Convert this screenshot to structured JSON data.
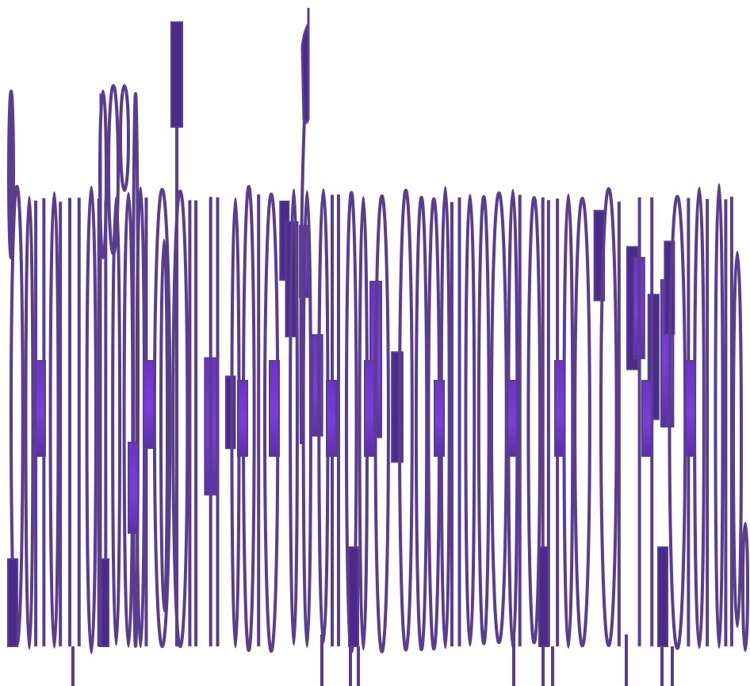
{
  "artwork": {
    "description_kind": "abstract-stroke-glyph-pattern",
    "colors": {
      "stroke": "#5a3d8c",
      "fill_light": "#7b3fd6",
      "fill_dark": "#4a2a8a",
      "background": "#ffffff"
    }
  }
}
